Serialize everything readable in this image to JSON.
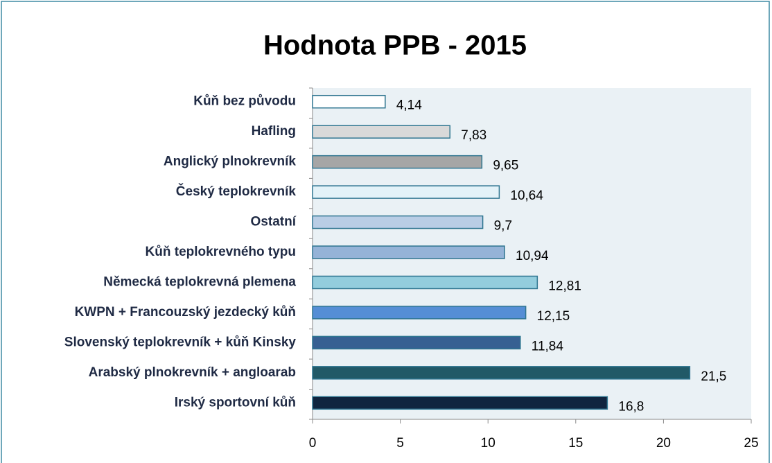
{
  "chart_data": {
    "type": "barh",
    "title": "Hodnota PPB - 2015",
    "categories": [
      "Kůň bez původu",
      "Hafling",
      "Anglický plnokrevník",
      "Český teplokrevník",
      "Ostatní",
      "Kůň teplokrevného typu",
      "Německá teplokrevná plemena",
      "KWPN + Francouzský jezdecký kůň",
      "Slovenský teplokrevník + kůň Kinsky",
      "Arabský plnokrevník +  angloarab",
      "Irský sportovní kůň"
    ],
    "values": [
      4.14,
      7.83,
      9.65,
      10.64,
      9.7,
      10.94,
      12.81,
      12.15,
      11.84,
      21.5,
      16.8
    ],
    "value_labels": [
      "4,14",
      "7,83",
      "9,65",
      "10,64",
      "9,7",
      "10,94",
      "12,81",
      "12,15",
      "11,84",
      "21,5",
      "16,8"
    ],
    "colors": [
      "#ffffff",
      "#d9d9d9",
      "#a6a6a6",
      "#e3f2f8",
      "#b9cde5",
      "#95b3d7",
      "#93cddd",
      "#558ed5",
      "#376092",
      "#215967",
      "#10253f"
    ],
    "xlim": [
      0,
      25
    ],
    "xticks": [
      0,
      5,
      10,
      15,
      20,
      25
    ],
    "grid": false
  }
}
